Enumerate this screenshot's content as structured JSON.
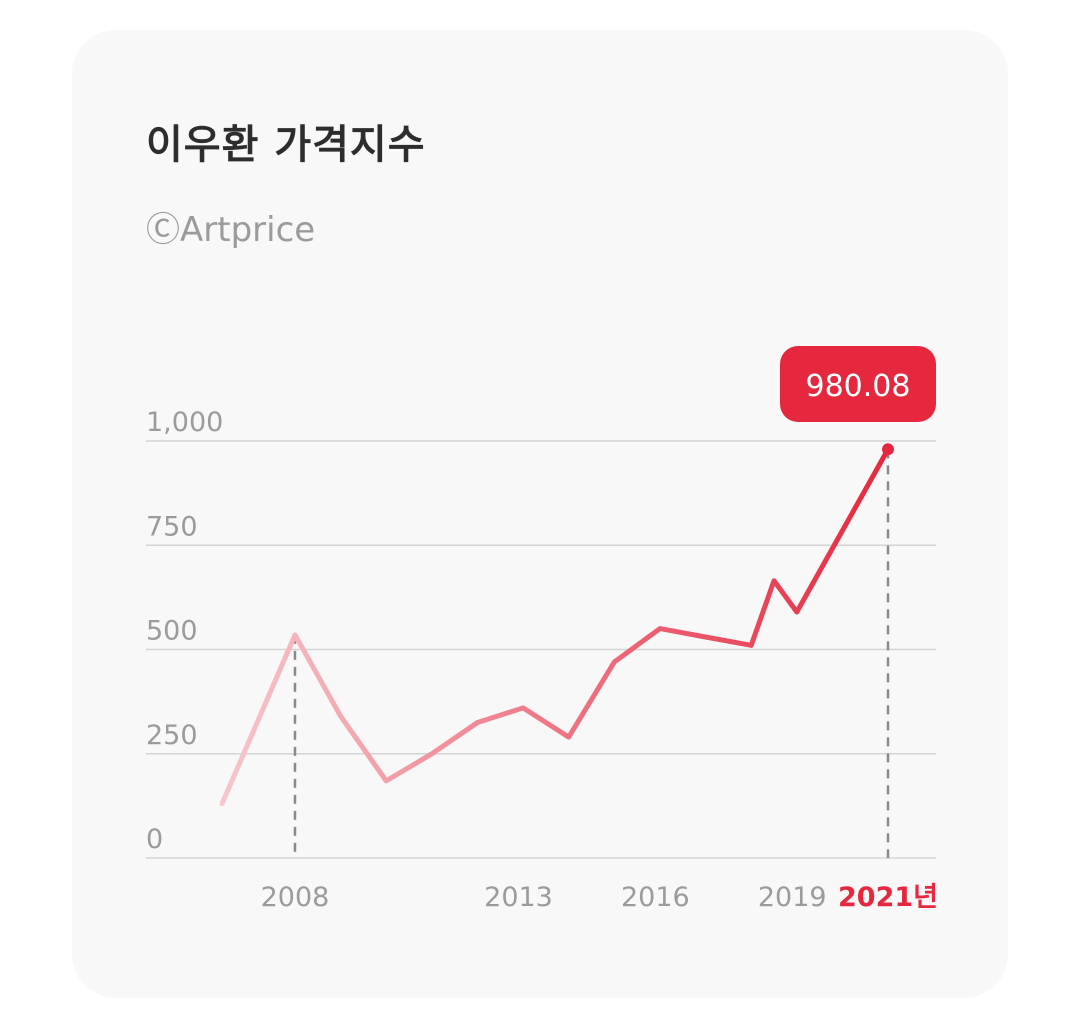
{
  "header": {
    "title": "이우환 가격지수",
    "source": "ⒸArtprice"
  },
  "colors": {
    "accent": "#e6283f",
    "line_start": "#f7c6cc",
    "grid": "#d4d4d4",
    "tick": "#9b9b9b"
  },
  "chart_data": {
    "type": "line",
    "title": "이우환 가격지수",
    "xlabel": "",
    "ylabel": "",
    "ylim": [
      0,
      1000
    ],
    "xlim": [
      2006.4,
      2021
    ],
    "y_ticks": [
      "0",
      "250",
      "500",
      "750",
      "1,000"
    ],
    "y_tick_values": [
      0,
      250,
      500,
      750,
      1000
    ],
    "x_ticks": [
      "2008",
      "2013",
      "2016",
      "2019",
      "2021년"
    ],
    "x_tick_values": [
      2008,
      2012.9,
      2015.9,
      2018.9,
      2021
    ],
    "highlight_x_tick": "2021년",
    "series": [
      {
        "x": [
          2006.4,
          2008,
          2009,
          2010,
          2011,
          2012,
          2013,
          2014,
          2015,
          2016,
          2017,
          2018,
          2018.5,
          2019,
          2021
        ],
        "values": [
          130,
          535,
          340,
          185,
          250,
          325,
          360,
          290,
          470,
          550,
          530,
          510,
          665,
          590,
          980
        ]
      }
    ],
    "annotations": [
      {
        "label": "980.08",
        "x": 2021,
        "y": 980.08
      }
    ],
    "guides_x": [
      2008,
      2021
    ],
    "grid": true,
    "legend": "none"
  }
}
